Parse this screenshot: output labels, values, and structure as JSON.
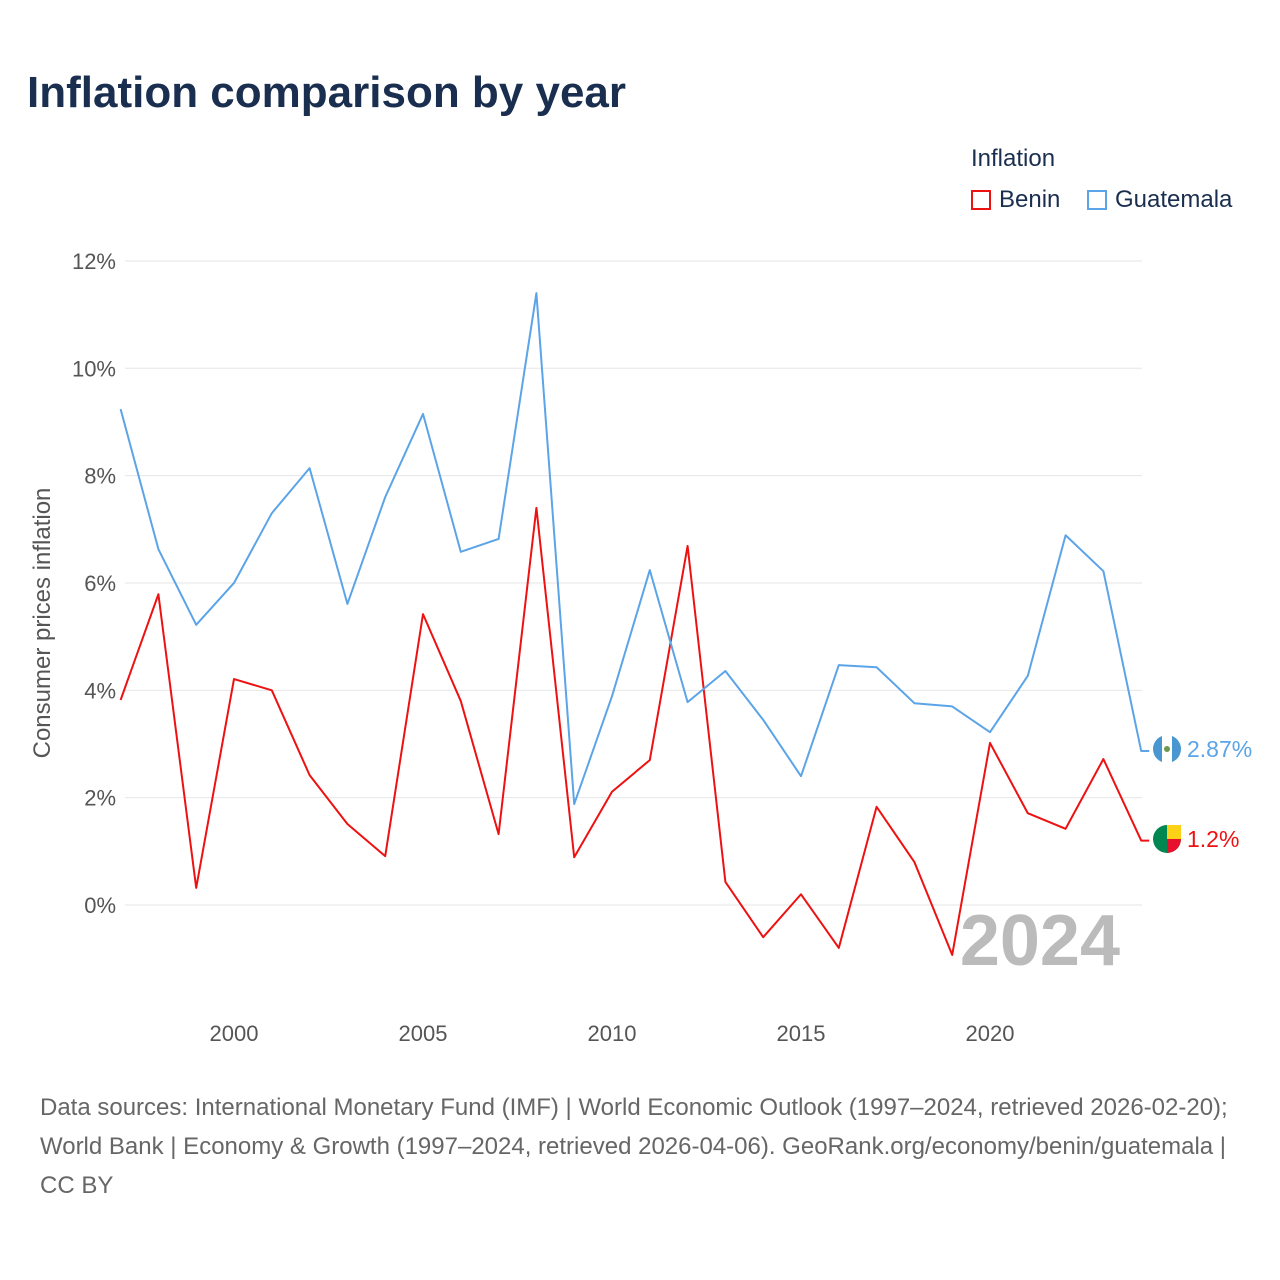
{
  "title": "Inflation comparison by year",
  "legend": {
    "title": "Inflation",
    "items": [
      {
        "name": "Benin",
        "color": "#ee1111"
      },
      {
        "name": "Guatemala",
        "color": "#5ba4e8"
      }
    ]
  },
  "source": "Data sources: International Monetary Fund (IMF) | World Economic Outlook (1997–2024, retrieved 2026-02-20); World Bank | Economy & Growth (1997–2024, retrieved 2026-04-06). GeoRank.org/economy/benin/guatemala | CC BY",
  "chart_data": {
    "type": "line",
    "ylabel": "Consumer prices inflation",
    "xlabel": "",
    "ylim": [
      -1.8,
      12
    ],
    "xlim": [
      1997,
      2024
    ],
    "yticks": [
      "0%",
      "2%",
      "4%",
      "6%",
      "8%",
      "10%",
      "12%"
    ],
    "ytick_values": [
      0,
      2,
      4,
      6,
      8,
      10,
      12
    ],
    "xticks": [
      "2000",
      "2005",
      "2010",
      "2015",
      "2020"
    ],
    "xtick_values": [
      2000,
      2005,
      2010,
      2015,
      2020
    ],
    "year_watermark": "2024",
    "x": [
      1997,
      1998,
      1999,
      2000,
      2001,
      2002,
      2003,
      2004,
      2005,
      2006,
      2007,
      2008,
      2009,
      2010,
      2011,
      2012,
      2013,
      2014,
      2015,
      2016,
      2017,
      2018,
      2019,
      2020,
      2021,
      2022,
      2023,
      2024
    ],
    "series": [
      {
        "name": "Benin",
        "color": "#ee1111",
        "end_label": "1.2%",
        "values": [
          3.82,
          5.79,
          0.32,
          4.21,
          4.0,
          2.42,
          1.51,
          0.91,
          5.42,
          3.8,
          1.32,
          7.4,
          0.89,
          2.11,
          2.7,
          6.69,
          0.43,
          -0.6,
          0.2,
          -0.8,
          1.83,
          0.8,
          -0.93,
          3.02,
          1.71,
          1.42,
          2.72,
          1.2
        ]
      },
      {
        "name": "Guatemala",
        "color": "#5ba4e8",
        "end_label": "2.87%",
        "values": [
          9.24,
          6.63,
          5.22,
          6.0,
          7.3,
          8.14,
          5.61,
          7.6,
          9.15,
          6.58,
          6.82,
          11.4,
          1.88,
          3.89,
          6.24,
          3.78,
          4.36,
          3.45,
          2.4,
          4.47,
          4.43,
          3.76,
          3.7,
          3.22,
          4.27,
          6.89,
          6.22,
          2.87
        ]
      }
    ]
  }
}
